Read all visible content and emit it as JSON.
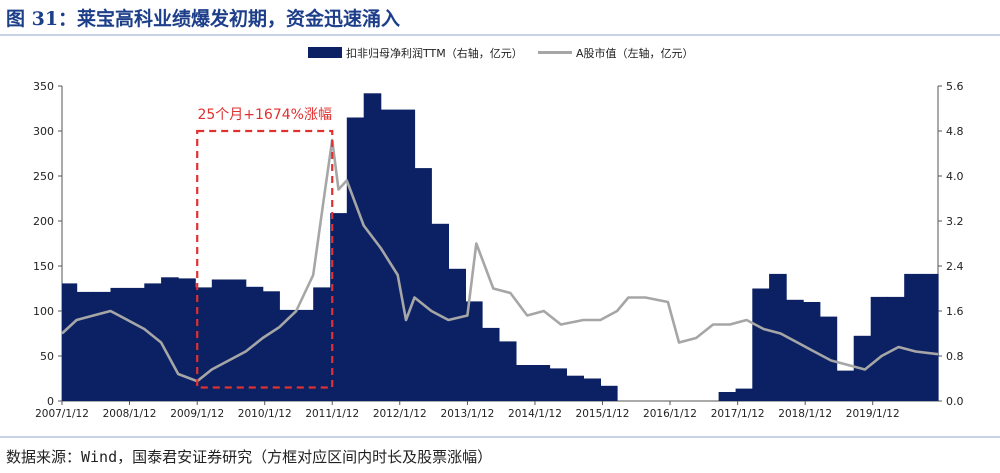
{
  "title": "图 31：莱宝高科业绩爆发初期，资金迅速涌入",
  "source": "数据来源：Wind，国泰君安证券研究（方框对应区间内时长及股票涨幅）",
  "annotation": "25个月+1674%涨幅",
  "colors": {
    "bar": "#0b2163",
    "line": "#a6a6a6",
    "box": "#e03030",
    "title": "#1d3f8a"
  },
  "chart_data": {
    "type": "bar",
    "legend_position": "top",
    "grid": false,
    "x_tick_labels": [
      "2007/1/12",
      "2008/1/12",
      "2009/1/12",
      "2010/1/12",
      "2011/1/12",
      "2012/1/12",
      "2013/1/12",
      "2014/1/12",
      "2015/1/12",
      "2016/1/12",
      "2017/1/12",
      "2018/1/12",
      "2019/1/12"
    ],
    "x_range": [
      "2007/1/12",
      "2019/12/31"
    ],
    "y_left": {
      "min": 0,
      "max": 350,
      "ticks": [
        0,
        50,
        100,
        150,
        200,
        250,
        300,
        350
      ]
    },
    "y_right": {
      "min": 0,
      "max": 5.6,
      "ticks": [
        "0.0",
        "0.8",
        "1.6",
        "2.4",
        "3.2",
        "4.0",
        "4.8",
        "5.6"
      ]
    },
    "series": [
      {
        "name": "扣非归母净利润TTM（右轴，亿元）",
        "type": "bar",
        "axis": "right",
        "points": [
          [
            "2007/1/12",
            2.09
          ],
          [
            "2007/4/1",
            1.94
          ],
          [
            "2007/7/1",
            1.94
          ],
          [
            "2007/10/1",
            2.01
          ],
          [
            "2008/1/1",
            2.01
          ],
          [
            "2008/4/1",
            2.09
          ],
          [
            "2008/7/1",
            2.2
          ],
          [
            "2008/10/1",
            2.18
          ],
          [
            "2009/1/1",
            2.02
          ],
          [
            "2009/4/1",
            2.16
          ],
          [
            "2009/7/1",
            2.16
          ],
          [
            "2009/10/1",
            2.03
          ],
          [
            "2010/1/1",
            1.95
          ],
          [
            "2010/4/1",
            1.62
          ],
          [
            "2010/7/1",
            1.62
          ],
          [
            "2010/10/1",
            2.02
          ],
          [
            "2011/1/1",
            3.34
          ],
          [
            "2011/4/1",
            5.04
          ],
          [
            "2011/7/1",
            5.47
          ],
          [
            "2011/10/1",
            5.18
          ],
          [
            "2012/1/1",
            5.18
          ],
          [
            "2012/4/1",
            4.14
          ],
          [
            "2012/7/1",
            3.15
          ],
          [
            "2012/10/1",
            2.35
          ],
          [
            "2013/1/1",
            1.77
          ],
          [
            "2013/4/1",
            1.3
          ],
          [
            "2013/7/1",
            1.06
          ],
          [
            "2013/10/1",
            0.64
          ],
          [
            "2014/1/1",
            0.64
          ],
          [
            "2014/4/1",
            0.58
          ],
          [
            "2014/7/1",
            0.45
          ],
          [
            "2014/10/1",
            0.4
          ],
          [
            "2015/1/1",
            0.27
          ],
          [
            "2015/4/1",
            0
          ],
          [
            "2015/7/1",
            0
          ],
          [
            "2015/10/1",
            0
          ],
          [
            "2016/1/1",
            0
          ],
          [
            "2016/4/1",
            0
          ],
          [
            "2016/7/1",
            0
          ],
          [
            "2016/10/1",
            0.16
          ],
          [
            "2017/1/1",
            0.22
          ],
          [
            "2017/4/1",
            2.0
          ],
          [
            "2017/7/1",
            2.26
          ],
          [
            "2017/10/1",
            1.8
          ],
          [
            "2018/1/1",
            1.76
          ],
          [
            "2018/4/1",
            1.5
          ],
          [
            "2018/7/1",
            0.54
          ],
          [
            "2018/10/1",
            1.16
          ],
          [
            "2019/1/1",
            1.85
          ],
          [
            "2019/4/1",
            1.85
          ],
          [
            "2019/7/1",
            2.26
          ],
          [
            "2019/10/1",
            2.26
          ]
        ]
      },
      {
        "name": "A股市值（左轴，亿元）",
        "type": "line",
        "axis": "left",
        "points": [
          [
            "2007/1/12",
            75
          ],
          [
            "2007/4/1",
            90
          ],
          [
            "2007/7/1",
            95
          ],
          [
            "2007/10/1",
            100
          ],
          [
            "2008/1/1",
            90
          ],
          [
            "2008/4/1",
            80
          ],
          [
            "2008/7/1",
            65
          ],
          [
            "2008/10/1",
            30
          ],
          [
            "2009/1/12",
            22
          ],
          [
            "2009/4/1",
            35
          ],
          [
            "2009/7/1",
            45
          ],
          [
            "2009/10/1",
            55
          ],
          [
            "2010/1/1",
            70
          ],
          [
            "2010/4/1",
            82
          ],
          [
            "2010/7/1",
            100
          ],
          [
            "2010/10/1",
            140
          ],
          [
            "2010/12/1",
            230
          ],
          [
            "2011/1/12",
            290
          ],
          [
            "2011/2/15",
            235
          ],
          [
            "2011/4/1",
            245
          ],
          [
            "2011/7/1",
            195
          ],
          [
            "2011/10/1",
            170
          ],
          [
            "2012/1/1",
            140
          ],
          [
            "2012/2/15",
            90
          ],
          [
            "2012/4/1",
            115
          ],
          [
            "2012/7/1",
            100
          ],
          [
            "2012/10/1",
            90
          ],
          [
            "2013/1/12",
            95
          ],
          [
            "2013/3/1",
            175
          ],
          [
            "2013/6/1",
            125
          ],
          [
            "2013/9/1",
            120
          ],
          [
            "2013/12/1",
            95
          ],
          [
            "2014/3/1",
            100
          ],
          [
            "2014/6/1",
            85
          ],
          [
            "2014/10/1",
            90
          ],
          [
            "2015/1/1",
            90
          ],
          [
            "2015/4/1",
            100
          ],
          [
            "2015/6/1",
            115
          ],
          [
            "2015/9/1",
            115
          ],
          [
            "2016/1/1",
            110
          ],
          [
            "2016/3/1",
            65
          ],
          [
            "2016/6/1",
            70
          ],
          [
            "2016/9/1",
            85
          ],
          [
            "2016/12/1",
            85
          ],
          [
            "2017/3/1",
            90
          ],
          [
            "2017/6/1",
            80
          ],
          [
            "2017/9/1",
            75
          ],
          [
            "2017/12/1",
            65
          ],
          [
            "2018/3/1",
            55
          ],
          [
            "2018/6/1",
            45
          ],
          [
            "2018/9/1",
            40
          ],
          [
            "2018/12/1",
            35
          ],
          [
            "2019/3/1",
            50
          ],
          [
            "2019/6/1",
            60
          ],
          [
            "2019/9/1",
            55
          ],
          [
            "2019/12/31",
            52
          ]
        ]
      }
    ],
    "highlight_box": {
      "x_start": "2009/1/12",
      "x_end": "2011/1/12",
      "y_min": 15,
      "y_max": 300
    }
  }
}
